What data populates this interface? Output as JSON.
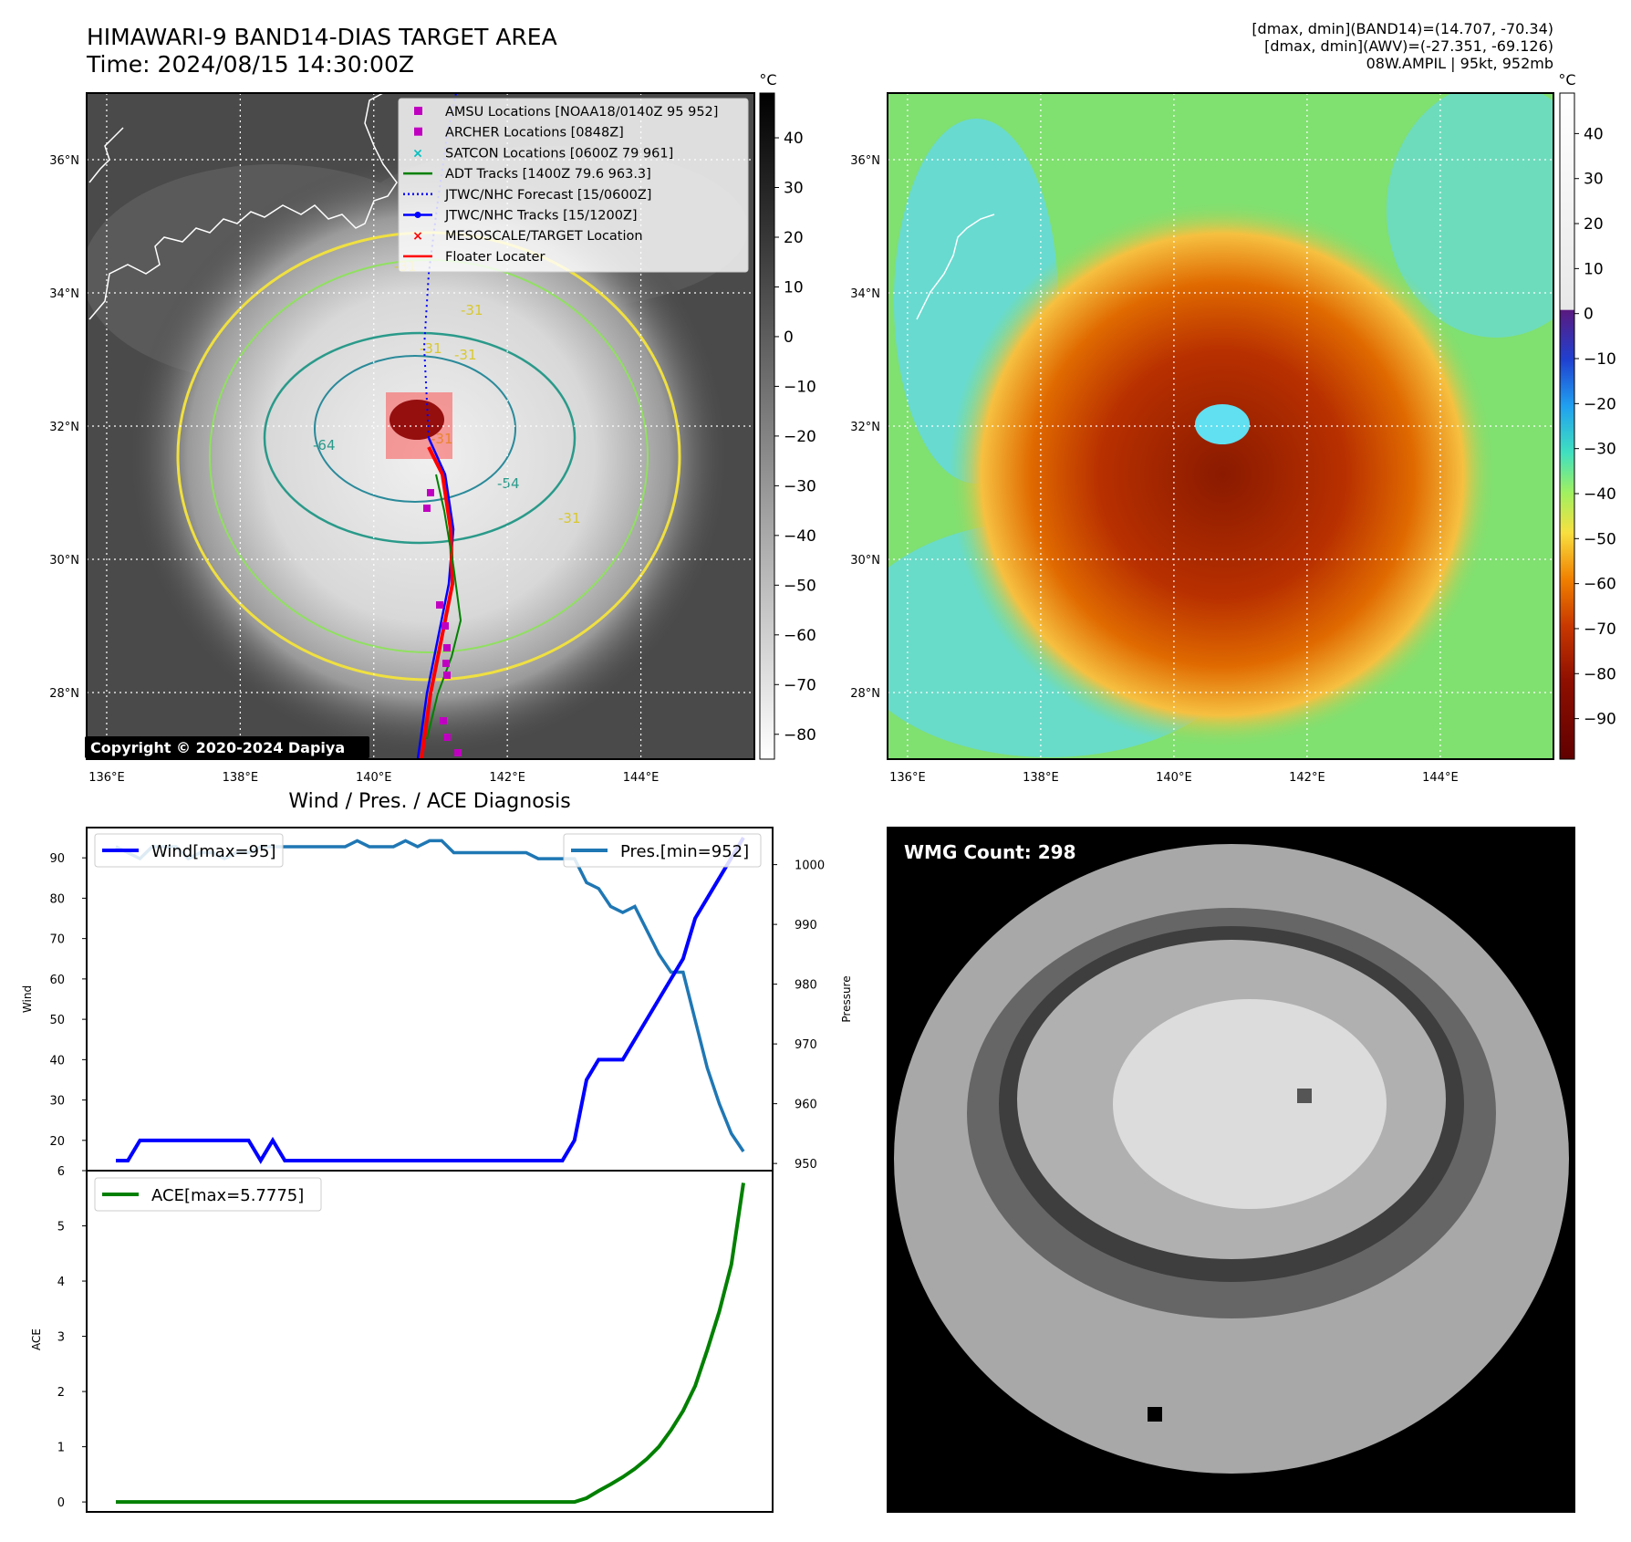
{
  "header": {
    "title_line1": "HIMAWARI-9 BAND14-DIAS TARGET AREA",
    "title_line2": "Time: 2024/08/15 14:30:00Z",
    "info_line1": "[dmax, dmin](BAND14)=(14.707, -70.34)",
    "info_line2": "[dmax, dmin](AWV)=(-27.351, -69.126)",
    "info_line3": "08W.AMPIL | 95kt, 952mb"
  },
  "map_axes": {
    "lon_ticks": [
      "136°E",
      "138°E",
      "140°E",
      "142°E",
      "144°E"
    ],
    "lat_ticks": [
      "28°N",
      "30°N",
      "32°N",
      "34°N",
      "36°N"
    ],
    "lon_values": [
      136,
      138,
      140,
      142,
      144
    ],
    "lat_values": [
      28,
      30,
      32,
      34,
      36
    ],
    "lon_range": [
      135.7,
      145.7
    ],
    "lat_range": [
      27.0,
      37.0
    ]
  },
  "panel_ir": {
    "colorbar_unit": "°C",
    "colorbar_ticks": [
      "40",
      "30",
      "20",
      "10",
      "0",
      "−10",
      "−20",
      "−30",
      "−40",
      "−50",
      "−60",
      "−70",
      "−80"
    ],
    "colorbar_values": [
      40,
      30,
      20,
      10,
      0,
      -10,
      -20,
      -30,
      -40,
      -50,
      -60,
      -70,
      -80
    ],
    "colorbar_range": [
      -85,
      49
    ],
    "copyright": "Copyright © 2020-2024 Dapiya",
    "contour_labels": [
      "-31",
      "-31",
      "-31",
      "-31",
      "-64",
      "-54",
      "-31",
      "-31"
    ],
    "legend": [
      {
        "label": "AMSU Locations [NOAA18/0140Z 95 952]",
        "color": "#c000c0",
        "marker": "square"
      },
      {
        "label": "ARCHER Locations [0848Z]",
        "color": "#c000c0",
        "marker": "square"
      },
      {
        "label": "SATCON Locations [0600Z 79 961]",
        "color": "#00c0c0",
        "marker": "x"
      },
      {
        "label": "ADT Tracks [1400Z 79.6 963.3]",
        "color": "#008000",
        "marker": "line"
      },
      {
        "label": "JTWC/NHC Forecast [15/0600Z]",
        "color": "#0000ff",
        "marker": "dotted"
      },
      {
        "label": "JTWC/NHC Tracks [15/1200Z]",
        "color": "#0000ff",
        "marker": "line-dot"
      },
      {
        "label": "MESOSCALE/TARGET Location",
        "color": "#ff0000",
        "marker": "x"
      },
      {
        "label": "Floater Locater",
        "color": "#ff0000",
        "marker": "line"
      }
    ]
  },
  "panel_awv": {
    "colorbar_unit": "°C",
    "colorbar_ticks": [
      "40",
      "30",
      "20",
      "10",
      "0",
      "−10",
      "−20",
      "−30",
      "−40",
      "−50",
      "−60",
      "−70",
      "−80",
      "−90"
    ],
    "colorbar_values": [
      40,
      30,
      20,
      10,
      0,
      -10,
      -20,
      -30,
      -40,
      -50,
      -60,
      -70,
      -80,
      -90
    ],
    "colorbar_range": [
      -99,
      49
    ]
  },
  "diagnosis": {
    "title": "Wind / Pres. / ACE Diagnosis",
    "wind_ylabel": "Wind",
    "pres_ylabel": "Pressure",
    "ace_ylabel": "ACE",
    "wind_legend": "Wind[max=95]",
    "pres_legend": "Pres.[min=952]",
    "ace_legend": "ACE[max=5.7775]",
    "wind_ticks": [
      "20",
      "30",
      "40",
      "50",
      "60",
      "70",
      "80",
      "90"
    ],
    "wind_tick_values": [
      20,
      30,
      40,
      50,
      60,
      70,
      80,
      90
    ],
    "pres_ticks": [
      "950",
      "960",
      "970",
      "980",
      "990",
      "1000"
    ],
    "pres_tick_values": [
      950,
      960,
      970,
      980,
      990,
      1000
    ],
    "ace_ticks": [
      "0",
      "1",
      "2",
      "3",
      "4",
      "5",
      "6"
    ],
    "ace_tick_values": [
      0,
      1,
      2,
      3,
      4,
      5,
      6
    ],
    "wind_color": "#0000ff",
    "pres_color": "#1f77b4",
    "ace_color": "#008000"
  },
  "wmg": {
    "label": "WMG Count: 298"
  },
  "chart_data": [
    {
      "type": "line",
      "x": [
        0,
        1,
        2,
        3,
        4,
        5,
        6,
        7,
        8,
        9,
        10,
        11,
        12,
        13,
        14,
        15,
        16,
        17,
        18,
        19,
        20,
        21,
        22,
        23,
        24,
        25,
        26,
        27,
        28,
        29,
        30,
        31,
        32,
        33,
        34,
        35,
        36,
        37,
        38,
        39,
        40,
        41,
        42,
        43,
        44,
        45,
        46,
        47,
        48,
        49,
        50,
        51,
        52
      ],
      "series": [
        {
          "name": "Wind[max=95]",
          "axis": "left",
          "values": [
            15,
            15,
            20,
            20,
            20,
            20,
            20,
            20,
            20,
            20,
            20,
            20,
            15,
            20,
            15,
            15,
            15,
            15,
            15,
            15,
            15,
            15,
            15,
            15,
            15,
            15,
            15,
            15,
            15,
            15,
            15,
            15,
            15,
            15,
            15,
            15,
            15,
            15,
            20,
            35,
            40,
            40,
            40,
            45,
            50,
            55,
            60,
            65,
            75,
            80,
            85,
            90,
            95
          ]
        },
        {
          "name": "Pres.[min=952]",
          "axis": "right",
          "values": [
            1003,
            1002,
            1001,
            1003,
            1003,
            1003,
            1001,
            1002,
            1002,
            1001,
            1002,
            1002,
            1003,
            1003,
            1003,
            1003,
            1003,
            1003,
            1003,
            1003,
            1004,
            1003,
            1003,
            1003,
            1004,
            1003,
            1004,
            1004,
            1002,
            1002,
            1002,
            1002,
            1002,
            1002,
            1002,
            1001,
            1001,
            1001,
            1001,
            997,
            996,
            993,
            992,
            993,
            989,
            985,
            982,
            982,
            974,
            966,
            960,
            955,
            952
          ]
        }
      ],
      "ylim_left": [
        12.5,
        97.5
      ],
      "ylim_right": [
        948.8,
        1006.2
      ]
    },
    {
      "type": "line",
      "x": [
        0,
        1,
        2,
        3,
        4,
        5,
        6,
        7,
        8,
        9,
        10,
        11,
        12,
        13,
        14,
        15,
        16,
        17,
        18,
        19,
        20,
        21,
        22,
        23,
        24,
        25,
        26,
        27,
        28,
        29,
        30,
        31,
        32,
        33,
        34,
        35,
        36,
        37,
        38,
        39,
        40,
        41,
        42,
        43,
        44,
        45,
        46,
        47,
        48,
        49,
        50,
        51,
        52
      ],
      "series": [
        {
          "name": "ACE[max=5.7775]",
          "values": [
            0,
            0,
            0,
            0,
            0,
            0,
            0,
            0,
            0,
            0,
            0,
            0,
            0,
            0,
            0,
            0,
            0,
            0,
            0,
            0,
            0,
            0,
            0,
            0,
            0,
            0,
            0,
            0,
            0,
            0,
            0,
            0,
            0,
            0,
            0,
            0,
            0,
            0,
            0,
            0.07,
            0.2,
            0.32,
            0.45,
            0.6,
            0.78,
            1.0,
            1.3,
            1.65,
            2.1,
            2.75,
            3.45,
            4.3,
            5.7775
          ]
        }
      ],
      "ylim": [
        -0.18,
        6.0
      ]
    }
  ]
}
